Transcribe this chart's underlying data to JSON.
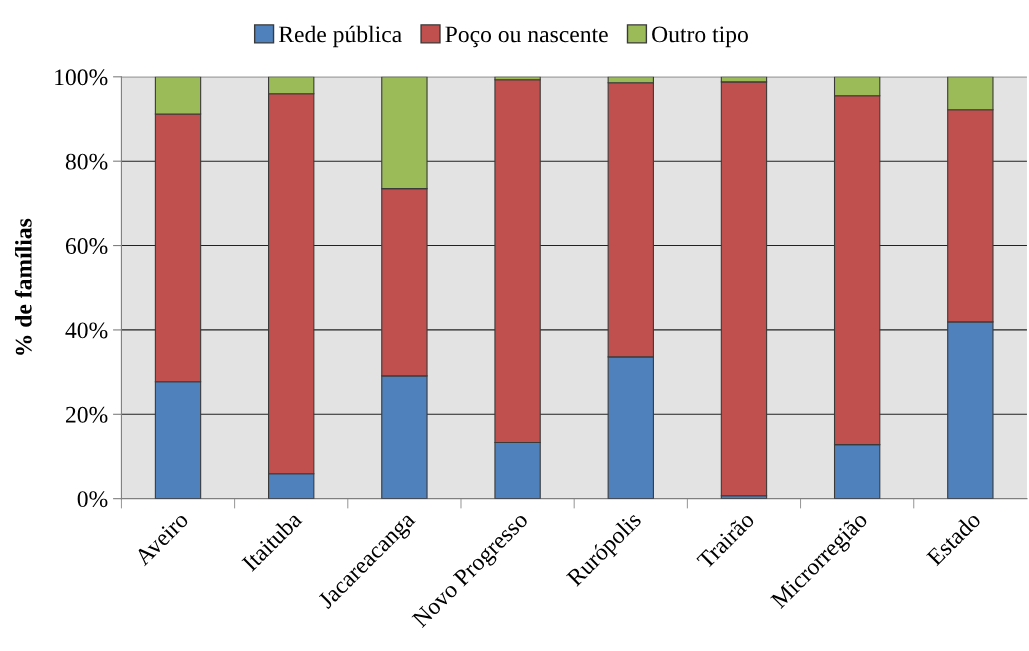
{
  "chart_data": {
    "type": "bar",
    "stacked": true,
    "ylabel": "% de famílias",
    "categories": [
      "Aveiro",
      "Itaituba",
      "Jacareacanga",
      "Novo Progresso",
      "Rurópolis",
      "Trairão",
      "Microrregião",
      "Estado"
    ],
    "series": [
      {
        "name": "Rede pública",
        "color": "#4f81bd",
        "values": [
          27.7,
          5.9,
          29.1,
          13.3,
          33.6,
          0.7,
          12.8,
          41.9
        ]
      },
      {
        "name": "Poço ou nascente",
        "color": "#c0504d",
        "values": [
          63.5,
          90.1,
          44.4,
          86.0,
          65.0,
          98.1,
          82.7,
          50.3
        ]
      },
      {
        "name": "Outro tipo",
        "color": "#9bbb59",
        "values": [
          8.8,
          4.0,
          26.5,
          0.7,
          1.4,
          1.2,
          4.5,
          7.8
        ]
      }
    ],
    "ylim": [
      0,
      100
    ],
    "yticks": [
      {
        "value": 0,
        "label": "0%"
      },
      {
        "value": 20,
        "label": "20%"
      },
      {
        "value": 40,
        "label": "40%"
      },
      {
        "value": 60,
        "label": "60%"
      },
      {
        "value": 80,
        "label": "80%"
      },
      {
        "value": 100,
        "label": "100%"
      }
    ],
    "grid": "y",
    "legend": "top"
  }
}
